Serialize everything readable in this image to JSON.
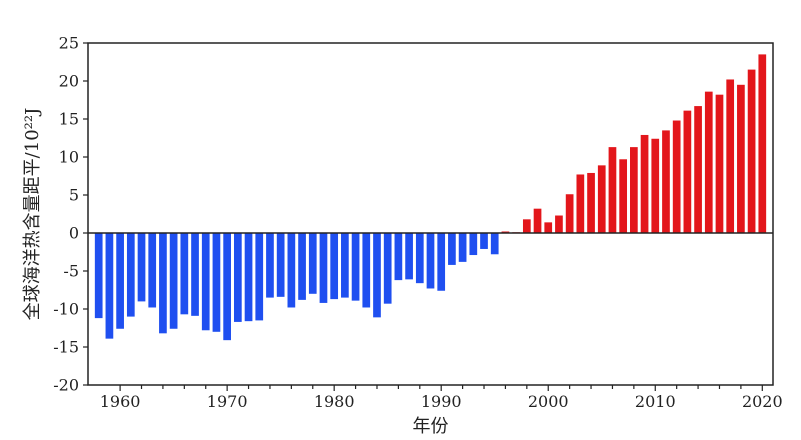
{
  "chart_data": {
    "type": "bar",
    "xlabel": "年份",
    "ylabel": "全球海洋热含量距平/10²²J",
    "ylim": [
      -20,
      25
    ],
    "xlim": [
      1957,
      2021
    ],
    "y_ticks": [
      "-20",
      "-15",
      "-10",
      "-5",
      "0",
      "5",
      "10",
      "15",
      "20",
      "25"
    ],
    "x_ticks": [
      "1960",
      "1970",
      "1980",
      "1990",
      "2000",
      "2010",
      "2020"
    ],
    "grid": false,
    "colors": {
      "negative": "#1f4ff0",
      "positive": "#e3161b",
      "axis": "#222222"
    },
    "x": [
      1958,
      1959,
      1960,
      1961,
      1962,
      1963,
      1964,
      1965,
      1966,
      1967,
      1968,
      1969,
      1970,
      1971,
      1972,
      1973,
      1974,
      1975,
      1976,
      1977,
      1978,
      1979,
      1980,
      1981,
      1982,
      1983,
      1984,
      1985,
      1986,
      1987,
      1988,
      1989,
      1990,
      1991,
      1992,
      1993,
      1994,
      1995,
      1996,
      1997,
      1998,
      1999,
      2000,
      2001,
      2002,
      2003,
      2004,
      2005,
      2006,
      2007,
      2008,
      2009,
      2010,
      2011,
      2012,
      2013,
      2014,
      2015,
      2016,
      2017,
      2018,
      2019,
      2020
    ],
    "values": [
      -11.2,
      -13.9,
      -12.6,
      -11.0,
      -9.0,
      -9.8,
      -13.2,
      -12.6,
      -10.7,
      -10.9,
      -12.8,
      -13.0,
      -14.1,
      -11.7,
      -11.6,
      -11.5,
      -8.5,
      -8.4,
      -9.8,
      -8.8,
      -8.0,
      -9.2,
      -8.7,
      -8.5,
      -8.9,
      -9.8,
      -11.1,
      -9.3,
      -6.2,
      -6.1,
      -6.6,
      -7.3,
      -7.6,
      -4.2,
      -3.8,
      -2.9,
      -2.1,
      -2.8,
      0.2,
      0.1,
      1.8,
      3.2,
      1.4,
      2.3,
      5.1,
      7.7,
      7.9,
      8.9,
      11.3,
      9.7,
      11.3,
      12.9,
      12.4,
      13.5,
      14.8,
      16.1,
      16.7,
      18.6,
      18.2,
      20.2,
      19.5,
      21.5,
      23.5
    ]
  }
}
